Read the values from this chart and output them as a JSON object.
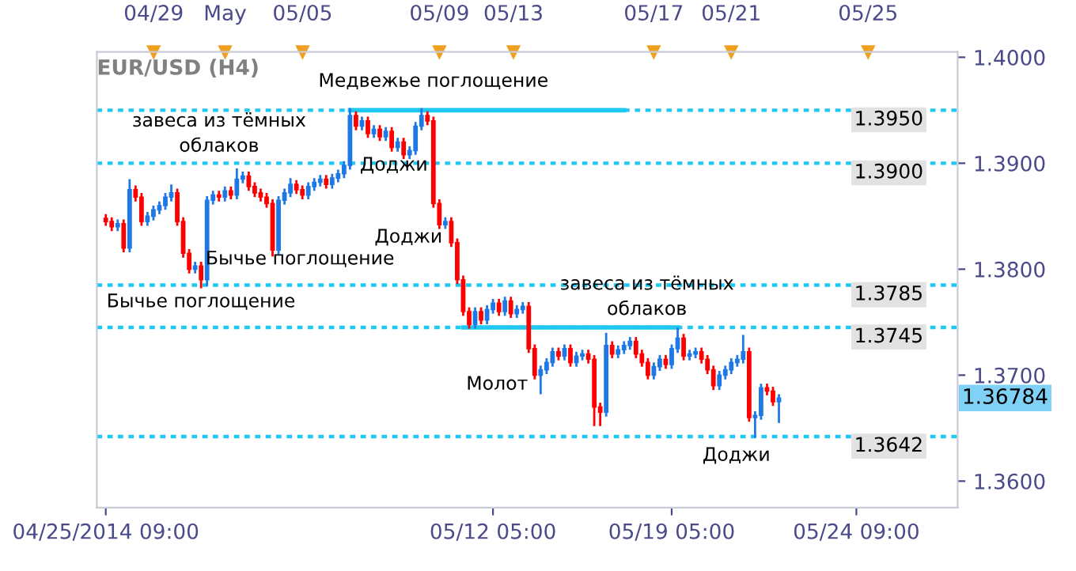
{
  "chart_data": {
    "type": "candlestick",
    "title": "EUR/USD (H4)",
    "categories": [
      "04/25/2014 09:00",
      null,
      null,
      null,
      null,
      null,
      null,
      null,
      null,
      null,
      null,
      null,
      null,
      null,
      null,
      null,
      null,
      null,
      null,
      null,
      null,
      null,
      null,
      null,
      null,
      null,
      null,
      null,
      null,
      null,
      null,
      null,
      null,
      null,
      null,
      null,
      null,
      null,
      null,
      null,
      null,
      null,
      null,
      null,
      null,
      null,
      null,
      null,
      null,
      null,
      null,
      null,
      null,
      null,
      null,
      null,
      null,
      null,
      null,
      null,
      null,
      null,
      null,
      null,
      null,
      "05/12 05:00",
      null,
      null,
      null,
      null,
      null,
      null,
      null,
      null,
      null,
      null,
      null,
      null,
      null,
      null,
      null,
      null,
      null,
      null,
      null,
      null,
      null,
      null,
      null,
      null,
      null,
      null,
      null,
      null,
      null,
      "05/19 05:00",
      null,
      null,
      null,
      null,
      null,
      null,
      null,
      null,
      null,
      null,
      null,
      null,
      null,
      null,
      null,
      null,
      null,
      null,
      null,
      null,
      null,
      null,
      null,
      null,
      null,
      null,
      null,
      null,
      null,
      null,
      "05/24 09:00",
      null,
      null,
      null
    ],
    "ohlc": [
      [
        1.3848,
        1.3852,
        1.3841,
        1.3845
      ],
      [
        1.3845,
        1.3849,
        1.3836,
        1.384
      ],
      [
        1.384,
        1.3847,
        1.3836,
        1.3843
      ],
      [
        1.3843,
        1.3847,
        1.3816,
        1.382
      ],
      [
        1.382,
        1.3885,
        1.3816,
        1.3875
      ],
      [
        1.3875,
        1.3879,
        1.3864,
        1.3868
      ],
      [
        1.3868,
        1.3872,
        1.3841,
        1.3845
      ],
      [
        1.3845,
        1.3854,
        1.3841,
        1.385
      ],
      [
        1.385,
        1.386,
        1.3846,
        1.3856
      ],
      [
        1.3856,
        1.3864,
        1.3852,
        1.386
      ],
      [
        1.386,
        1.3872,
        1.3856,
        1.3868
      ],
      [
        1.3868,
        1.388,
        1.3864,
        1.3872
      ],
      [
        1.3872,
        1.3876,
        1.3841,
        1.3845
      ],
      [
        1.3845,
        1.3849,
        1.3811,
        1.3815
      ],
      [
        1.3815,
        1.3819,
        1.3796,
        1.38
      ],
      [
        1.38,
        1.3807,
        1.3796,
        1.3803
      ],
      [
        1.3803,
        1.3807,
        1.3782,
        1.379
      ],
      [
        1.379,
        1.3869,
        1.3784,
        1.3865
      ],
      [
        1.3865,
        1.3874,
        1.3861,
        1.387
      ],
      [
        1.387,
        1.3874,
        1.3864,
        1.3868
      ],
      [
        1.3868,
        1.3878,
        1.3864,
        1.3874
      ],
      [
        1.3874,
        1.3878,
        1.3866,
        1.387
      ],
      [
        1.387,
        1.3895,
        1.3866,
        1.3885
      ],
      [
        1.3885,
        1.3892,
        1.3881,
        1.3888
      ],
      [
        1.3888,
        1.3892,
        1.3874,
        1.3878
      ],
      [
        1.3878,
        1.3882,
        1.3868,
        1.3872
      ],
      [
        1.3872,
        1.3876,
        1.3864,
        1.3868
      ],
      [
        1.3868,
        1.3872,
        1.3858,
        1.3862
      ],
      [
        1.3862,
        1.3866,
        1.3812,
        1.3818
      ],
      [
        1.3818,
        1.3869,
        1.3814,
        1.3865
      ],
      [
        1.3865,
        1.3876,
        1.3861,
        1.3872
      ],
      [
        1.3872,
        1.3886,
        1.3868,
        1.388
      ],
      [
        1.388,
        1.3884,
        1.3871,
        1.3875
      ],
      [
        1.3875,
        1.3879,
        1.3866,
        1.387
      ],
      [
        1.387,
        1.3882,
        1.3866,
        1.3878
      ],
      [
        1.3878,
        1.3886,
        1.3874,
        1.3882
      ],
      [
        1.3882,
        1.3889,
        1.3878,
        1.3885
      ],
      [
        1.3885,
        1.3889,
        1.3876,
        1.388
      ],
      [
        1.388,
        1.389,
        1.3876,
        1.3886
      ],
      [
        1.3886,
        1.3894,
        1.3882,
        1.389
      ],
      [
        1.389,
        1.3902,
        1.3886,
        1.3898
      ],
      [
        1.3898,
        1.3952,
        1.3894,
        1.3945
      ],
      [
        1.3945,
        1.3949,
        1.3931,
        1.3935
      ],
      [
        1.3935,
        1.3944,
        1.3931,
        1.394
      ],
      [
        1.394,
        1.3944,
        1.3924,
        1.3928
      ],
      [
        1.3928,
        1.3936,
        1.3924,
        1.3932
      ],
      [
        1.3932,
        1.3936,
        1.3921,
        1.3925
      ],
      [
        1.3925,
        1.3934,
        1.3921,
        1.393
      ],
      [
        1.393,
        1.3934,
        1.3911,
        1.3915
      ],
      [
        1.3915,
        1.3924,
        1.3911,
        1.392
      ],
      [
        1.392,
        1.3924,
        1.3904,
        1.3908
      ],
      [
        1.3908,
        1.3916,
        1.3904,
        1.3912
      ],
      [
        1.3912,
        1.3939,
        1.3908,
        1.3935
      ],
      [
        1.3935,
        1.3952,
        1.3931,
        1.3945
      ],
      [
        1.3945,
        1.3949,
        1.3936,
        1.394
      ],
      [
        1.394,
        1.3944,
        1.3858,
        1.3862
      ],
      [
        1.3862,
        1.3866,
        1.3838,
        1.3842
      ],
      [
        1.3842,
        1.3849,
        1.3838,
        1.3845
      ],
      [
        1.3845,
        1.3849,
        1.3821,
        1.3825
      ],
      [
        1.3825,
        1.3829,
        1.3786,
        1.379
      ],
      [
        1.379,
        1.3794,
        1.3756,
        1.376
      ],
      [
        1.376,
        1.3764,
        1.3744,
        1.3748
      ],
      [
        1.3748,
        1.3764,
        1.3744,
        1.376
      ],
      [
        1.376,
        1.3764,
        1.3748,
        1.3752
      ],
      [
        1.3752,
        1.3766,
        1.3748,
        1.3762
      ],
      [
        1.3762,
        1.3772,
        1.3758,
        1.3768
      ],
      [
        1.3768,
        1.3772,
        1.3756,
        1.376
      ],
      [
        1.376,
        1.3774,
        1.3756,
        1.377
      ],
      [
        1.377,
        1.3774,
        1.3754,
        1.3758
      ],
      [
        1.3758,
        1.3766,
        1.3754,
        1.3762
      ],
      [
        1.3762,
        1.3769,
        1.3758,
        1.3765
      ],
      [
        1.3765,
        1.3769,
        1.3721,
        1.3725
      ],
      [
        1.3725,
        1.3729,
        1.3696,
        1.37
      ],
      [
        1.37,
        1.3709,
        1.3682,
        1.3705
      ],
      [
        1.3705,
        1.3716,
        1.3701,
        1.3712
      ],
      [
        1.3712,
        1.3726,
        1.3708,
        1.3722
      ],
      [
        1.3722,
        1.3726,
        1.3714,
        1.3718
      ],
      [
        1.3718,
        1.3729,
        1.3714,
        1.3725
      ],
      [
        1.3725,
        1.3729,
        1.3708,
        1.3712
      ],
      [
        1.3712,
        1.3722,
        1.3708,
        1.3718
      ],
      [
        1.3718,
        1.3724,
        1.3714,
        1.372
      ],
      [
        1.372,
        1.3724,
        1.3711,
        1.3715
      ],
      [
        1.3715,
        1.3719,
        1.3652,
        1.367
      ],
      [
        1.367,
        1.3674,
        1.3652,
        1.3665
      ],
      [
        1.3665,
        1.374,
        1.3661,
        1.3728
      ],
      [
        1.3728,
        1.3732,
        1.3716,
        1.372
      ],
      [
        1.372,
        1.3728,
        1.3716,
        1.3724
      ],
      [
        1.3724,
        1.3732,
        1.372,
        1.3728
      ],
      [
        1.3728,
        1.3736,
        1.3724,
        1.3732
      ],
      [
        1.3732,
        1.3736,
        1.3716,
        1.372
      ],
      [
        1.372,
        1.3724,
        1.3708,
        1.3712
      ],
      [
        1.3712,
        1.3716,
        1.3696,
        1.37
      ],
      [
        1.37,
        1.3712,
        1.3696,
        1.3708
      ],
      [
        1.3708,
        1.3719,
        1.3704,
        1.3715
      ],
      [
        1.3715,
        1.3719,
        1.3706,
        1.371
      ],
      [
        1.371,
        1.3729,
        1.3706,
        1.3725
      ],
      [
        1.3725,
        1.3745,
        1.3721,
        1.3735
      ],
      [
        1.3735,
        1.3739,
        1.3714,
        1.3718
      ],
      [
        1.3718,
        1.3724,
        1.3714,
        1.372
      ],
      [
        1.372,
        1.3726,
        1.3716,
        1.3722
      ],
      [
        1.3722,
        1.3726,
        1.3711,
        1.3715
      ],
      [
        1.3715,
        1.3719,
        1.3701,
        1.3705
      ],
      [
        1.3705,
        1.3709,
        1.3686,
        1.369
      ],
      [
        1.369,
        1.3704,
        1.3686,
        1.37
      ],
      [
        1.37,
        1.3709,
        1.3696,
        1.3705
      ],
      [
        1.3705,
        1.3716,
        1.3701,
        1.3712
      ],
      [
        1.3712,
        1.3719,
        1.3708,
        1.3715
      ],
      [
        1.3715,
        1.3738,
        1.3711,
        1.3722
      ],
      [
        1.3722,
        1.3726,
        1.3656,
        1.366
      ],
      [
        1.366,
        1.3666,
        1.3641,
        1.3662
      ],
      [
        1.3662,
        1.3692,
        1.3658,
        1.3688
      ],
      [
        1.3688,
        1.3692,
        1.3681,
        1.3685
      ],
      [
        1.3685,
        1.3689,
        1.3671,
        1.3675
      ],
      [
        1.3675,
        1.3682,
        1.3655,
        1.36784
      ],
      null,
      null,
      null,
      null,
      null,
      null,
      null,
      null,
      null,
      null,
      null,
      null,
      null,
      null,
      null,
      null
    ],
    "colors": [
      "#ff0000",
      "#ff0000",
      "#1e78e6",
      "#ff0000",
      "#1e78e6",
      "#ff0000",
      "#ff0000",
      "#1e78e6",
      "#1e78e6",
      "#1e78e6",
      "#1e78e6",
      "#1e78e6",
      "#ff0000",
      "#ff0000",
      "#ff0000",
      "#1e78e6",
      "#ff0000",
      "#1e78e6",
      "#1e78e6",
      "#ff0000",
      "#1e78e6",
      "#ff0000",
      "#1e78e6",
      "#1e78e6",
      "#ff0000",
      "#ff0000",
      "#ff0000",
      "#ff0000",
      "#ff0000",
      "#1e78e6",
      "#1e78e6",
      "#1e78e6",
      "#ff0000",
      "#ff0000",
      "#1e78e6",
      "#1e78e6",
      "#1e78e6",
      "#ff0000",
      "#1e78e6",
      "#1e78e6",
      "#1e78e6",
      "#1e78e6",
      "#ff0000",
      "#1e78e6",
      "#ff0000",
      "#1e78e6",
      "#ff0000",
      "#1e78e6",
      "#ff0000",
      "#1e78e6",
      "#ff0000",
      "#1e78e6",
      "#1e78e6",
      "#1e78e6",
      "#ff0000",
      "#ff0000",
      "#ff0000",
      "#1e78e6",
      "#ff0000",
      "#ff0000",
      "#ff0000",
      "#ff0000",
      "#1e78e6",
      "#ff0000",
      "#1e78e6",
      "#1e78e6",
      "#ff0000",
      "#1e78e6",
      "#ff0000",
      "#1e78e6",
      "#1e78e6",
      "#ff0000",
      "#ff0000",
      "#1e78e6",
      "#1e78e6",
      "#1e78e6",
      "#ff0000",
      "#1e78e6",
      "#ff0000",
      "#1e78e6",
      "#1e78e6",
      "#ff0000",
      "#ff0000",
      "#ff0000",
      "#1e78e6",
      "#ff0000",
      "#1e78e6",
      "#1e78e6",
      "#1e78e6",
      "#ff0000",
      "#ff0000",
      "#ff0000",
      "#1e78e6",
      "#1e78e6",
      "#ff0000",
      "#1e78e6",
      "#1e78e6",
      "#ff0000",
      "#1e78e6",
      "#1e78e6",
      "#ff0000",
      "#ff0000",
      "#ff0000",
      "#1e78e6",
      "#1e78e6",
      "#1e78e6",
      "#1e78e6",
      "#1e78e6",
      "#ff0000",
      "#1e78e6",
      "#1e78e6",
      "#ff0000",
      "#ff0000",
      "#1e78e6",
      null,
      null,
      null,
      null,
      null,
      null,
      null,
      null,
      null,
      null,
      null,
      null,
      null,
      null,
      null,
      null
    ],
    "series": [
      {
        "type": "line",
        "color": "#1ec8f0",
        "values": [
          null,
          null,
          null,
          null,
          null,
          null,
          null,
          null,
          null,
          null,
          null,
          null,
          null,
          null,
          null,
          null,
          null,
          null,
          null,
          null,
          null,
          null,
          null,
          null,
          null,
          null,
          null,
          null,
          null,
          null,
          null,
          null,
          null,
          null,
          null,
          null,
          null,
          null,
          null,
          null,
          null,
          1.395,
          1.395,
          1.395,
          1.395,
          1.395,
          1.395,
          1.395,
          1.395,
          1.395,
          1.395,
          1.395,
          1.395,
          1.395,
          1.395,
          1.395,
          1.395,
          1.395,
          1.395,
          1.395,
          1.395,
          1.395,
          1.395,
          1.395,
          1.395,
          1.395,
          1.395,
          1.395,
          1.395,
          1.395,
          1.395,
          1.395,
          1.395,
          1.395,
          1.395,
          1.395,
          1.395,
          1.395,
          1.395,
          1.395,
          1.395,
          1.395,
          1.395,
          1.395,
          1.395,
          1.395,
          1.395,
          1.395,
          null,
          null,
          null,
          null,
          null,
          null,
          null,
          null,
          null,
          null,
          null,
          null,
          null,
          null,
          null,
          null,
          null,
          null,
          null,
          null,
          null,
          null,
          null,
          null,
          null,
          null,
          null,
          null,
          null,
          null,
          null,
          null,
          null,
          null,
          null,
          null,
          null,
          null,
          null,
          null,
          null,
          null
        ]
      },
      {
        "type": "line",
        "color": "#1ec8f0",
        "values": [
          null,
          null,
          null,
          null,
          null,
          null,
          null,
          null,
          null,
          null,
          null,
          null,
          null,
          null,
          null,
          null,
          null,
          null,
          null,
          null,
          null,
          null,
          null,
          null,
          null,
          null,
          null,
          null,
          null,
          null,
          null,
          null,
          null,
          null,
          null,
          null,
          null,
          null,
          null,
          null,
          null,
          null,
          null,
          null,
          null,
          null,
          null,
          null,
          null,
          null,
          null,
          null,
          null,
          null,
          null,
          null,
          null,
          null,
          null,
          null,
          1.3745,
          1.3745,
          1.3745,
          1.3745,
          1.3745,
          1.3745,
          1.3745,
          1.3745,
          1.3745,
          1.3745,
          1.3745,
          1.3745,
          1.3745,
          1.3745,
          1.3745,
          1.3745,
          1.3745,
          1.3745,
          1.3745,
          1.3745,
          1.3745,
          1.3745,
          1.3745,
          1.3745,
          1.3745,
          1.3745,
          1.3745,
          1.3745,
          1.3745,
          1.3745,
          1.3745,
          1.3745,
          1.3745,
          1.3745,
          1.3745,
          1.3745,
          1.3745,
          null,
          null,
          null,
          null,
          null,
          null,
          null,
          null,
          null,
          null,
          null,
          null,
          null,
          null,
          null,
          null,
          null,
          null,
          null,
          null,
          null,
          null,
          null,
          null,
          null,
          null,
          null,
          null,
          null,
          null,
          null,
          null,
          null
        ]
      }
    ],
    "ref_lines": [
      {
        "axis": "y",
        "value": 1.395,
        "label": "1.3950",
        "color": "#1ec8f0",
        "line_style": "dotted"
      },
      {
        "axis": "y",
        "value": 1.39,
        "label": "1.3900",
        "color": "#1ec8f0",
        "line_style": "dotted"
      },
      {
        "axis": "y",
        "value": 1.3785,
        "label": "1.3785",
        "color": "#1ec8f0",
        "line_style": "dotted"
      },
      {
        "axis": "y",
        "value": 1.3745,
        "label": "1.3745",
        "color": "#1ec8f0",
        "line_style": "dotted"
      },
      {
        "axis": "y",
        "value": 1.3642,
        "label": "1.3642",
        "color": "#1ec8f0",
        "line_style": "dotted"
      }
    ],
    "annotations": [
      "Медвежье поглощение",
      "завеса из тёмных\nоблаков",
      "Доджи",
      "Доджи",
      "Бычье поглощение",
      "Бычье поглощение",
      "завеса из тёмных\nоблаков",
      "Молот",
      "Доджи",
      "1.36784",
      "04/29",
      "May",
      "05/05",
      "05/09",
      "05/13",
      "05/17",
      "05/21",
      "05/25"
    ],
    "ylim": [
      1.3575,
      1.4005
    ],
    "yticks": [
      {
        "value": 1.36,
        "label": "1.3600"
      },
      {
        "value": 1.37,
        "label": "1.3700"
      },
      {
        "value": 1.38,
        "label": "1.3800"
      },
      {
        "value": 1.39,
        "label": "1.3900"
      },
      {
        "value": 1.4,
        "label": "1.4000"
      }
    ],
    "grid": false,
    "legend": false
  }
}
